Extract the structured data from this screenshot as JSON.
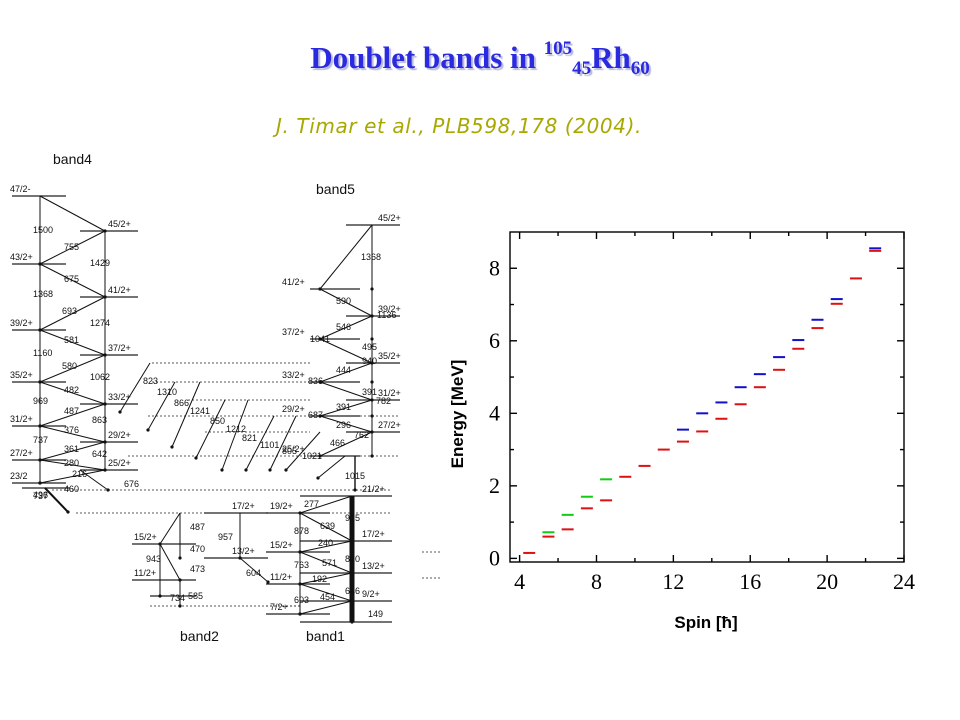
{
  "title": {
    "main": "Doublet bands in ",
    "mass_number": "105",
    "atomic_number": "45",
    "element": "Rh",
    "neutron_number": "60"
  },
  "citation": "J. Timar  et al., PLB598,178 (2004).",
  "level_scheme": {
    "bands": [
      {
        "name": "band4",
        "levels": [
          "47/2-",
          "43/2+",
          "39/2+",
          "35/2+",
          "31/2+",
          "27/2+",
          "23/2"
        ]
      },
      {
        "name": "band5",
        "levels": [
          "45/2+",
          "41/2+",
          "39/2+",
          "37/2+",
          "35/2+",
          "33/2+",
          "31/2+",
          "29/2+",
          "27/2+",
          "25/2+"
        ]
      },
      {
        "name": "band2",
        "levels": [
          "17/2+",
          "15/2+",
          "13/2+",
          "11/2+"
        ]
      },
      {
        "name": "band1",
        "levels": [
          "21/2+",
          "19/2+",
          "17/2+",
          "15/2+",
          "13/2+",
          "11/2+",
          "9/2+",
          "7/2+"
        ]
      }
    ],
    "band4_side_levels": [
      "45/2+",
      "41/2+",
      "37/2+",
      "33/2+",
      "29/2+",
      "25/2+"
    ],
    "transitions_band4": [
      "1500",
      "755",
      "675",
      "1429",
      "1368",
      "693",
      "581",
      "1274",
      "1160",
      "580",
      "1062",
      "482",
      "487",
      "969",
      "376",
      "863",
      "737",
      "361",
      "642",
      "280",
      "216",
      "496",
      "460",
      "737",
      "676"
    ],
    "transitions_linking": [
      "823",
      "1310",
      "866",
      "1241",
      "850",
      "1212",
      "821",
      "1101",
      "805",
      "1021"
    ],
    "transitions_band5": [
      "1368",
      "590",
      "1136",
      "546",
      "1041",
      "495",
      "940",
      "444",
      "836",
      "391",
      "391",
      "782",
      "687",
      "296",
      "762",
      "466",
      "1015"
    ],
    "transitions_band2": [
      "487",
      "957",
      "470",
      "943",
      "473",
      "604",
      "734",
      "585"
    ],
    "transitions_band1": [
      "277",
      "639",
      "878",
      "915",
      "240",
      "763",
      "810",
      "192",
      "571",
      "454",
      "646",
      "603",
      "149"
    ]
  },
  "chart_data": {
    "type": "scatter",
    "marker": "horizontal-dash",
    "xlabel": "Spin [ħ]",
    "ylabel": "Energy [MeV]",
    "xlim": [
      3.5,
      24
    ],
    "ylim": [
      -0.1,
      9.0
    ],
    "xticks": [
      4,
      8,
      12,
      16,
      20,
      24
    ],
    "yticks": [
      0,
      2,
      4,
      6,
      8
    ],
    "grid": false,
    "series": [
      {
        "color": "#dd1111",
        "points": [
          {
            "x": 4.5,
            "y": 0.15
          },
          {
            "x": 5.5,
            "y": 0.6
          },
          {
            "x": 6.5,
            "y": 0.8
          },
          {
            "x": 7.5,
            "y": 1.38
          },
          {
            "x": 8.5,
            "y": 1.6
          },
          {
            "x": 9.5,
            "y": 2.25
          },
          {
            "x": 10.5,
            "y": 2.55
          },
          {
            "x": 11.5,
            "y": 3.0
          },
          {
            "x": 12.5,
            "y": 3.22
          },
          {
            "x": 13.5,
            "y": 3.5
          },
          {
            "x": 14.5,
            "y": 3.85
          },
          {
            "x": 15.5,
            "y": 4.25
          },
          {
            "x": 16.5,
            "y": 4.72
          },
          {
            "x": 17.5,
            "y": 5.2
          },
          {
            "x": 18.5,
            "y": 5.78
          },
          {
            "x": 19.5,
            "y": 6.35
          },
          {
            "x": 20.5,
            "y": 7.02
          },
          {
            "x": 21.5,
            "y": 7.72
          },
          {
            "x": 22.5,
            "y": 8.48
          }
        ]
      },
      {
        "color": "#11cc11",
        "points": [
          {
            "x": 5.5,
            "y": 0.72
          },
          {
            "x": 6.5,
            "y": 1.2
          },
          {
            "x": 7.5,
            "y": 1.7
          },
          {
            "x": 8.5,
            "y": 2.18
          }
        ]
      },
      {
        "color": "#1111cc",
        "points": [
          {
            "x": 12.5,
            "y": 3.55
          },
          {
            "x": 13.5,
            "y": 4.0
          },
          {
            "x": 14.5,
            "y": 4.3
          },
          {
            "x": 15.5,
            "y": 4.72
          },
          {
            "x": 16.5,
            "y": 5.08
          },
          {
            "x": 17.5,
            "y": 5.55
          },
          {
            "x": 18.5,
            "y": 6.02
          },
          {
            "x": 19.5,
            "y": 6.58
          },
          {
            "x": 20.5,
            "y": 7.15
          },
          {
            "x": 22.5,
            "y": 8.55
          }
        ]
      }
    ]
  }
}
